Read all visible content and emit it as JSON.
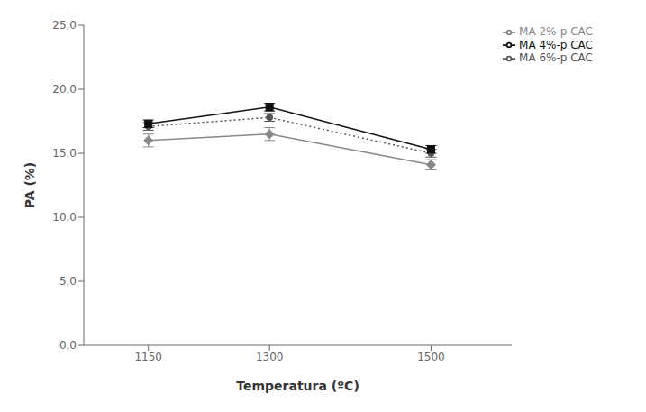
{
  "chart_data": {
    "type": "line",
    "x": [
      1150,
      1300,
      1500
    ],
    "series": [
      {
        "name": "MA 6%-p CAC",
        "color": "#555555",
        "values": [
          17.1,
          17.8,
          15.0
        ],
        "yerr": [
          0.3,
          0.3,
          0.3
        ],
        "line_style": "dotted",
        "marker": "circle"
      },
      {
        "name": "MA 4%-p CAC",
        "color": "#111111",
        "values": [
          17.3,
          18.6,
          15.3
        ],
        "yerr": [
          0.3,
          0.3,
          0.3
        ],
        "line_style": "solid",
        "marker": "square"
      },
      {
        "name": "MA 2%-p CAC",
        "color": "#888888",
        "values": [
          16.0,
          16.5,
          14.1
        ],
        "yerr": [
          0.5,
          0.5,
          0.4
        ],
        "line_style": "solid",
        "marker": "diamond"
      }
    ],
    "xlabel": "Temperatura (ºC)",
    "ylabel": "PA (%)",
    "xlim": [
      1070,
      1600
    ],
    "ylim": [
      0,
      25
    ],
    "xticks": [
      1150,
      1300,
      1500
    ],
    "yticks": [
      {
        "value": 0.0,
        "label": "0,0"
      },
      {
        "value": 5.0,
        "label": "5,0"
      },
      {
        "value": 10.0,
        "label": "10,0"
      },
      {
        "value": 15.0,
        "label": "15,0"
      },
      {
        "value": 20.0,
        "label": "20,0"
      },
      {
        "value": 25.0,
        "label": "25,0"
      }
    ],
    "grid": false,
    "legend": "upper right"
  }
}
